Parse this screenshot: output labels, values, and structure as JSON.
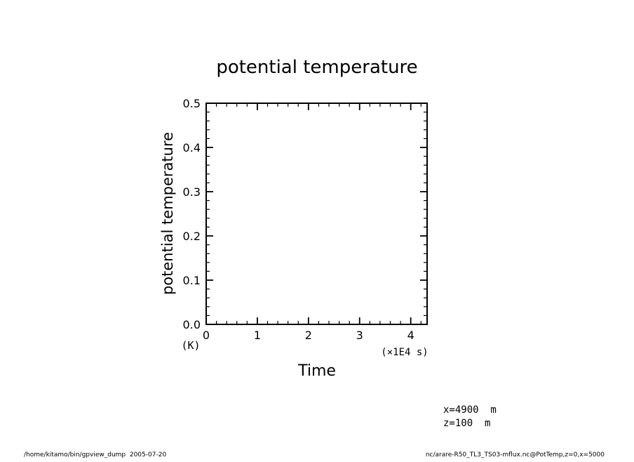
{
  "chart_data": {
    "type": "line",
    "title": "potential temperature",
    "xlabel": "Time",
    "ylabel": "potential temperature",
    "y_unit": "(K)",
    "x_unit": "(×1E4 s)",
    "xlim": [
      0,
      4.32
    ],
    "ylim": [
      0.0,
      0.5
    ],
    "x_ticks": [
      "0",
      "1",
      "2",
      "3",
      "4"
    ],
    "y_ticks": [
      "0.0",
      "0.1",
      "0.2",
      "0.3",
      "0.4",
      "0.5"
    ],
    "grid": false,
    "series": []
  },
  "annotations": {
    "x_position": "x=4900  m",
    "z_position": "z=100  m"
  },
  "footer": {
    "left": "/home/kitamo/bin/gpview_dump  2005-07-20",
    "right": "nc/arare-R50_TL3_TS03-mflux.nc@PotTemp,z=0,x=5000"
  }
}
